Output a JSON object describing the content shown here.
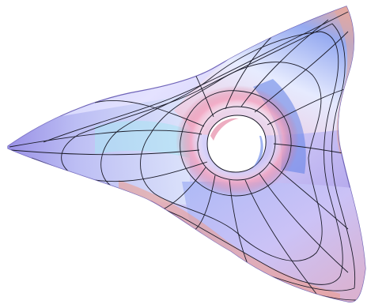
{
  "figure": {
    "subject": "three-lobed-torus-surface",
    "background": "#ffffff",
    "mesh_color": "#1c1c2a",
    "palette": {
      "edge_purple": "#8b7fe0",
      "body_lavender": "#c9c2f5",
      "highlight_white": "#f4f2ff",
      "inner_pink": "#f2a4c2",
      "inner_red": "#dd6e86",
      "cyan_band": "#a8e4f3",
      "blue_band": "#5f7fe6",
      "rim_salmon": "#ee9a88",
      "hole": "#ffffff"
    }
  }
}
